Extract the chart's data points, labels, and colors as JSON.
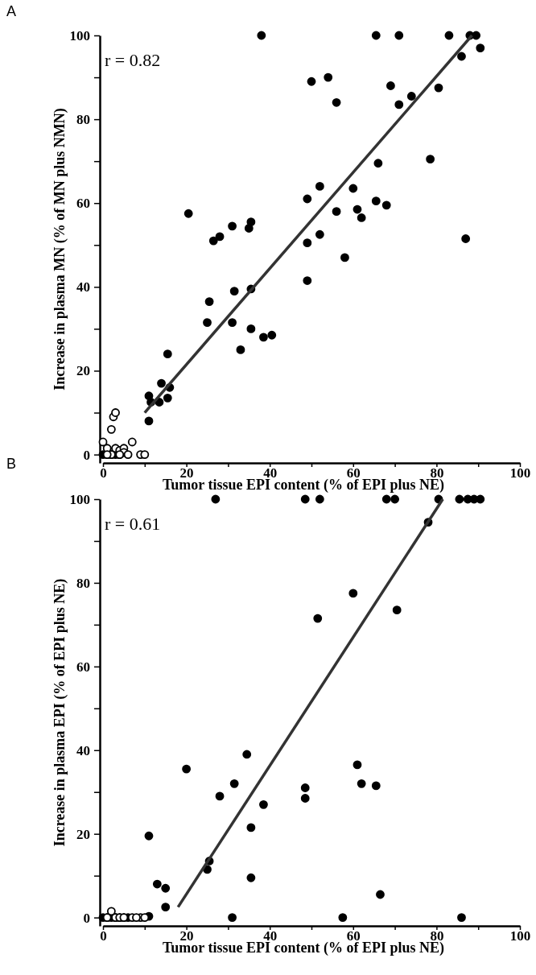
{
  "chart_data": [
    {
      "type": "scatter",
      "xlabel": "Tumor tissue EPI content (% of EPI plus NE)",
      "ylabel": "Increase in plasma MN (% of MN plus NMN)",
      "annotations": [
        "A",
        "r = 0.82"
      ],
      "xlim": [
        0,
        100
      ],
      "ylim": [
        -2,
        100
      ],
      "xticks": [
        0,
        {
          "value": 10,
          "label": null
        },
        20,
        {
          "value": 30,
          "label": null
        },
        40,
        {
          "value": 50,
          "label": null
        },
        60,
        {
          "value": 70,
          "label": null
        },
        80,
        {
          "value": 90,
          "label": null
        },
        100
      ],
      "yticks": [
        0,
        {
          "value": 10,
          "label": null
        },
        20,
        {
          "value": 30,
          "label": null
        },
        40,
        {
          "value": 50,
          "label": null
        },
        60,
        {
          "value": 70,
          "label": null
        },
        80,
        {
          "value": 90,
          "label": null
        },
        100
      ],
      "marker": "circle",
      "series": [
        {
          "color": "#000000",
          "x": [
            38,
            65.5,
            71,
            83,
            88,
            89.5,
            90.5,
            86,
            50,
            54,
            69,
            80.5,
            74,
            56,
            71,
            78.5,
            66,
            60,
            52,
            49,
            65.5,
            61,
            56,
            68,
            62,
            20.5,
            35.5,
            31,
            35,
            26.5,
            28,
            49,
            52,
            58,
            87,
            49,
            35.5,
            31.5,
            25.5,
            25,
            31,
            35.5,
            38.5,
            40.5,
            33,
            15.5,
            14,
            16,
            11,
            15.5,
            13.5,
            11.5,
            11,
            0,
            1,
            2,
            3,
            4
          ],
          "values": [
            100,
            100,
            100,
            100,
            100,
            100,
            97,
            95,
            89,
            90,
            88,
            87.5,
            85.5,
            84,
            83.5,
            70.5,
            69.5,
            63.5,
            64,
            61,
            60.5,
            58.5,
            58,
            59.5,
            56.5,
            57.5,
            55.5,
            54.5,
            54,
            51,
            52,
            50.5,
            52.5,
            47,
            51.5,
            41.5,
            39.5,
            39,
            36.5,
            31.5,
            31.5,
            30,
            28,
            28.5,
            25,
            24,
            17,
            16,
            14,
            13.5,
            12.5,
            12.5,
            8,
            0,
            0,
            0,
            0,
            0
          ]
        },
        {
          "color": "#ffffff",
          "x": [
            0,
            1,
            2,
            2.5,
            3,
            3,
            4,
            5,
            5,
            7,
            6,
            9,
            10,
            2,
            4,
            1
          ],
          "values": [
            3,
            1.5,
            6,
            9,
            10,
            1.5,
            1,
            1.5,
            0.5,
            3,
            0,
            0,
            0,
            0,
            0,
            0
          ]
        },
        {
          "type": "line",
          "marker": "none",
          "color": "#333333",
          "x": [
            10,
            88.5
          ],
          "values": [
            10,
            100
          ]
        }
      ]
    },
    {
      "type": "scatter",
      "xlabel": "Tumor tissue EPI content (% of EPI plus NE)",
      "ylabel": "Increase in plasma EPI (% of EPI plus NE)",
      "annotations": [
        "B",
        "r = 0.61"
      ],
      "xlim": [
        0,
        100
      ],
      "ylim": [
        -2,
        100
      ],
      "xticks": [
        0,
        {
          "value": 10,
          "label": null
        },
        20,
        {
          "value": 30,
          "label": null
        },
        40,
        {
          "value": 50,
          "label": null
        },
        60,
        {
          "value": 70,
          "label": null
        },
        80,
        {
          "value": 90,
          "label": null
        },
        100
      ],
      "yticks": [
        0,
        {
          "value": 10,
          "label": null
        },
        20,
        {
          "value": 30,
          "label": null
        },
        40,
        {
          "value": 50,
          "label": null
        },
        60,
        {
          "value": 70,
          "label": null
        },
        80,
        {
          "value": 90,
          "label": null
        },
        100
      ],
      "marker": "circle",
      "series": [
        {
          "color": "#000000",
          "x": [
            27,
            48.5,
            52,
            68,
            70,
            80.5,
            85.5,
            87.5,
            89,
            90.5,
            78,
            60,
            51.5,
            70.5,
            34.5,
            61,
            20,
            31.5,
            62,
            65.5,
            48.5,
            28,
            48.5,
            38.5,
            35.5,
            11,
            25.5,
            25,
            35.5,
            13,
            15,
            66.5,
            15,
            31,
            57.5,
            86,
            11,
            0,
            1,
            2,
            3,
            4,
            5,
            6
          ],
          "values": [
            100,
            100,
            100,
            100,
            100,
            100,
            100,
            100,
            100,
            100,
            94.5,
            77.5,
            71.5,
            73.5,
            39,
            36.5,
            35.5,
            32,
            32,
            31.5,
            31,
            29,
            28.5,
            27,
            21.5,
            19.5,
            13.5,
            11.5,
            9.5,
            8,
            7,
            5.5,
            2.5,
            0,
            0,
            0,
            0.3,
            0,
            0,
            0,
            0,
            0,
            0,
            0
          ]
        },
        {
          "color": "#ffffff",
          "x": [
            2,
            1,
            3,
            4,
            5,
            7,
            9,
            10,
            8
          ],
          "values": [
            1.5,
            0,
            0,
            0,
            0,
            0,
            0,
            0,
            0
          ]
        },
        {
          "type": "line",
          "marker": "none",
          "color": "#333333",
          "x": [
            18,
            81.5
          ],
          "values": [
            2.5,
            100
          ]
        }
      ]
    }
  ]
}
